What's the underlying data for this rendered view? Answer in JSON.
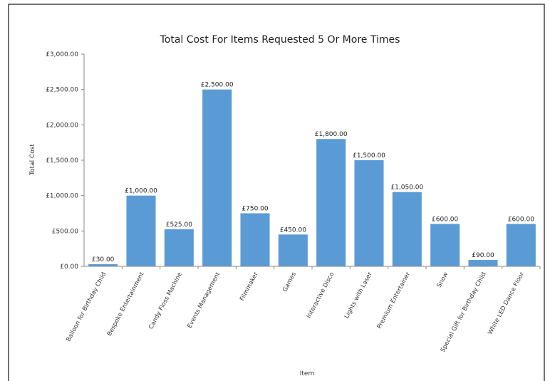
{
  "chart_data": {
    "type": "bar",
    "title": "Total Cost For Items Requested 5 Or More Times",
    "xlabel": "Item",
    "ylabel": "Total Cost",
    "ylim": [
      0,
      3000
    ],
    "yticks": [
      0,
      500,
      1000,
      1500,
      2000,
      2500,
      3000
    ],
    "ytick_labels": [
      "£0.00",
      "£500.00",
      "£1,000.00",
      "£1,500.00",
      "£2,000.00",
      "£2,500.00",
      "£3,000.00"
    ],
    "grid": false,
    "legend": "none",
    "bar_color": "#5b9bd5",
    "categories": [
      "Balloon for Birthday Child",
      "Bespoke Entertainment",
      "Candy Floss Machine",
      "Events Management",
      "Filmmaker",
      "Games",
      "Interactive Disco",
      "Lights with Laser",
      "Premium Entertainer",
      "Snow",
      "Special Gift for Birthday Child",
      "White LED Dance Floor"
    ],
    "values": [
      30,
      1000,
      525,
      2500,
      750,
      450,
      1800,
      1500,
      1050,
      600,
      90,
      600
    ],
    "value_labels": [
      "£30.00",
      "£1,000.00",
      "£525.00",
      "£2,500.00",
      "£750.00",
      "£450.00",
      "£1,800.00",
      "£1,500.00",
      "£1,050.00",
      "£600.00",
      "£90.00",
      "£600.00"
    ]
  }
}
